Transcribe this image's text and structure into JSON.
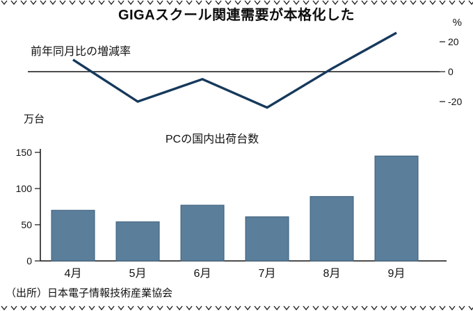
{
  "page": {
    "title": "GIGAスクール関連需要が本格化した",
    "source": "（出所）日本電子情報技術産業協会"
  },
  "chart_data": [
    {
      "type": "line",
      "title": "前年同月比の増減率",
      "unit_label": "%",
      "categories": [
        "4月",
        "5月",
        "6月",
        "7月",
        "8月",
        "9月"
      ],
      "values": [
        8,
        -20,
        -5,
        -24,
        2,
        26
      ],
      "yticks": [
        20,
        0,
        -20
      ],
      "ylim": [
        -30,
        30
      ],
      "grid": false,
      "line_color": "#16395c"
    },
    {
      "type": "bar",
      "title": "PCの国内出荷台数",
      "unit_label": "万台",
      "categories": [
        "4月",
        "5月",
        "6月",
        "7月",
        "8月",
        "9月"
      ],
      "values": [
        70,
        54,
        77,
        61,
        89,
        145
      ],
      "yticks": [
        0,
        50,
        100,
        150
      ],
      "ylim": [
        0,
        160
      ],
      "grid": false,
      "bar_color": "#5b7e9b",
      "bar_border_color": "#3a5d79"
    }
  ],
  "colors": {
    "axis": "#111111",
    "text": "#111111",
    "deco": "#222222"
  }
}
